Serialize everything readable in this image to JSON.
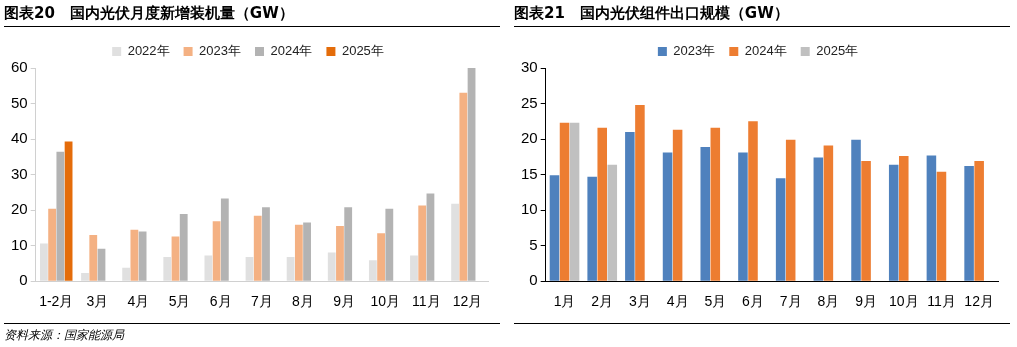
{
  "chart_data": [
    {
      "type": "bar",
      "title": "图表20　国内光伏月度新增装机量（GW）",
      "categories": [
        "1-2月",
        "3月",
        "4月",
        "5月",
        "6月",
        "7月",
        "8月",
        "9月",
        "10月",
        "11月",
        "12月"
      ],
      "series": [
        {
          "name": "2022年",
          "color": "#e0e0e0",
          "values": [
            10.6,
            2.3,
            3.8,
            6.8,
            7.2,
            6.8,
            6.8,
            8.1,
            5.9,
            7.2,
            21.8
          ]
        },
        {
          "name": "2023年",
          "color": "#f4b183",
          "values": [
            20.4,
            13.0,
            14.5,
            12.6,
            16.9,
            18.4,
            15.9,
            15.5,
            13.5,
            21.3,
            53.0
          ]
        },
        {
          "name": "2024年",
          "color": "#b3b3b3",
          "values": [
            36.4,
            9.1,
            14.0,
            18.9,
            23.3,
            20.8,
            16.5,
            20.8,
            20.4,
            24.7,
            60
          ]
        },
        {
          "name": "2025年",
          "color": "#e46c0a",
          "values": [
            39.3,
            null,
            null,
            null,
            null,
            null,
            null,
            null,
            null,
            null,
            null
          ]
        }
      ],
      "ylim": [
        0,
        60
      ],
      "yticks": [
        0,
        10,
        20,
        30,
        40,
        50,
        60
      ],
      "grid": false,
      "legend": "top",
      "annotations": [
        "资料来源：国家能源局"
      ]
    },
    {
      "type": "bar",
      "title": "图表21　国内光伏组件出口规模（GW）",
      "categories": [
        "1月",
        "2月",
        "3月",
        "4月",
        "5月",
        "6月",
        "7月",
        "8月",
        "9月",
        "10月",
        "11月",
        "12月"
      ],
      "series": [
        {
          "name": "2023年",
          "color": "#4f81bd",
          "values": [
            14.9,
            14.7,
            21.0,
            18.1,
            18.9,
            18.1,
            14.5,
            17.4,
            19.9,
            16.4,
            17.7,
            16.2
          ]
        },
        {
          "name": "2024年",
          "color": "#ed7d31",
          "values": [
            22.3,
            21.6,
            24.8,
            21.3,
            21.6,
            22.5,
            19.9,
            19.1,
            16.9,
            17.6,
            15.4,
            16.9
          ]
        },
        {
          "name": "2025年",
          "color": "#c0c0c0",
          "values": [
            22.3,
            16.4,
            null,
            null,
            null,
            null,
            null,
            null,
            null,
            null,
            null,
            null
          ]
        }
      ],
      "ylim": [
        0,
        30
      ],
      "yticks": [
        0,
        5,
        10,
        15,
        20,
        25,
        30
      ],
      "grid": false,
      "legend": "top"
    }
  ]
}
